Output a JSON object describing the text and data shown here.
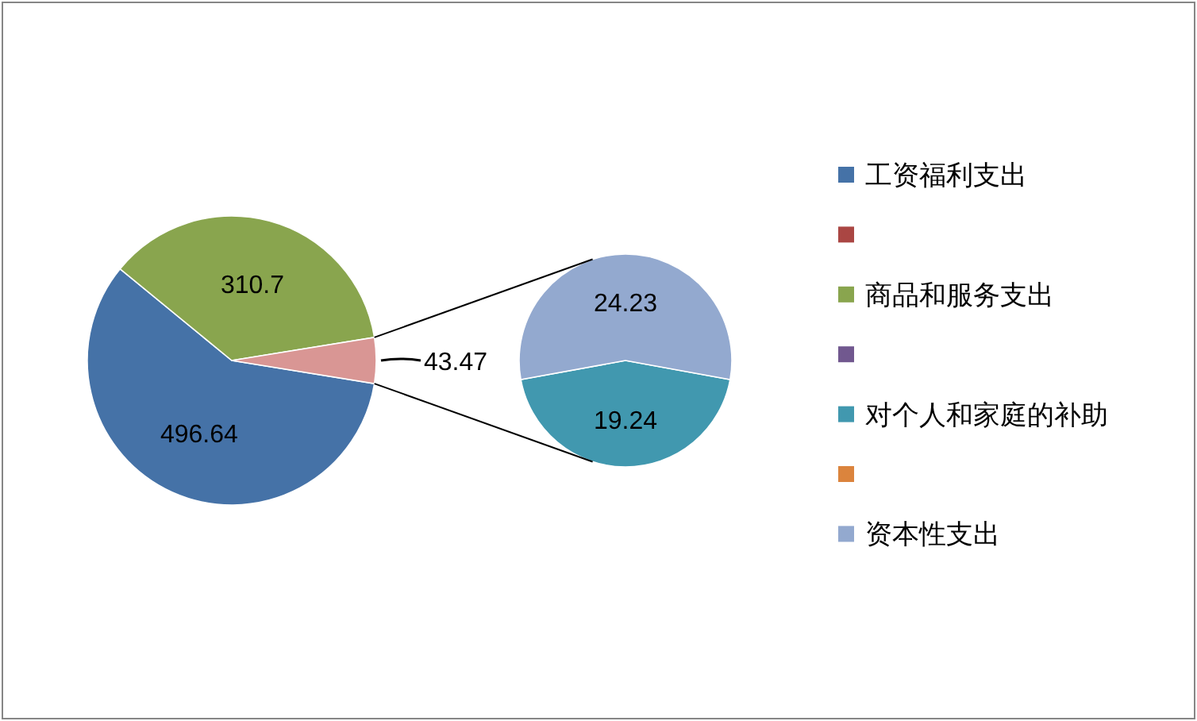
{
  "chart_data": [
    {
      "type": "pie",
      "categories": [
        "工资福利支出",
        null,
        "商品和服务支出",
        null,
        null
      ],
      "values": [
        496.64,
        null,
        310.7,
        null,
        43.47
      ],
      "colors": [
        "#4572a7",
        "#aa4643",
        "#89a54e",
        "#71588f",
        "#d99694"
      ],
      "data_labels": true,
      "legend": "right"
    },
    {
      "type": "pie",
      "categories": [
        "对个人和家庭的补助",
        null,
        "资本性支出"
      ],
      "values": [
        19.24,
        null,
        24.23
      ],
      "colors": [
        "#4198af",
        "#db843d",
        "#93a9cf"
      ],
      "data_labels": true,
      "legend": "right"
    }
  ]
}
